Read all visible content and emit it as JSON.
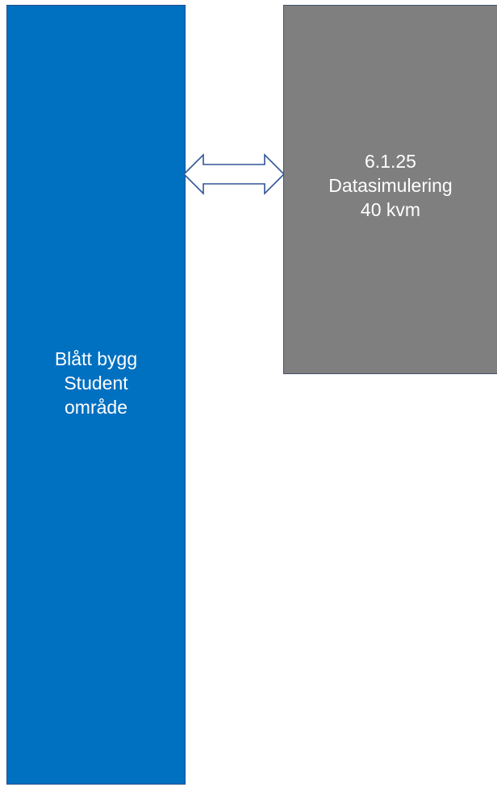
{
  "blocks": {
    "blue": {
      "lines": [
        "Blått bygg",
        "Student",
        "område"
      ],
      "color": "#0070c0"
    },
    "grey": {
      "lines": [
        "6.1.25",
        "Datasimulering",
        "40 kvm"
      ],
      "color": "#7f7f7f"
    }
  },
  "connector": {
    "icon": "double-arrow-icon",
    "stroke": "#2f5597"
  }
}
